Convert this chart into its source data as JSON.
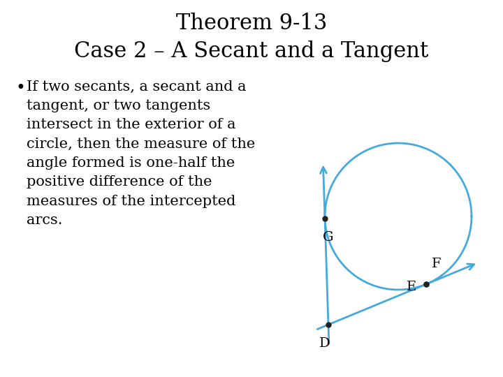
{
  "title_line1": "Theorem 9-13",
  "title_line2": "Case 2 – A Secant and a Tangent",
  "bullet_lines": "If two secants, a secant and a\ntangent, or two tangents\nintersect in the exterior of a\ncircle, then the measure of the\nangle formed is one-half the\npositive difference of the\nmeasures of the intercepted\narcs.",
  "circle_color": "#44AADD",
  "dot_color": "#222222",
  "label_color": "#000000",
  "bg_color": "#FFFFFF",
  "title_fontsize": 22,
  "bullet_fontsize": 15
}
